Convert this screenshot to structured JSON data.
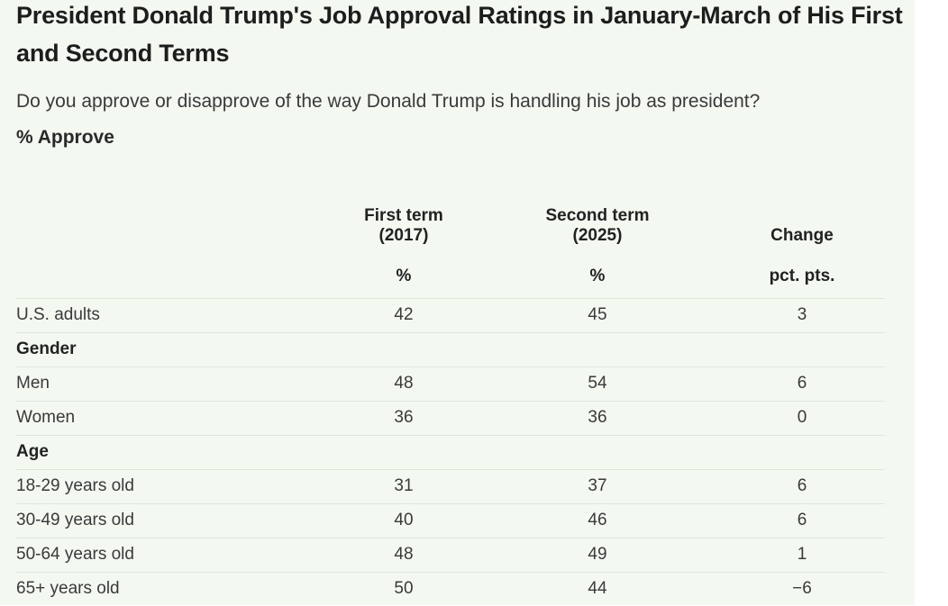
{
  "chart_data": {
    "type": "table",
    "title": "President Donald Trump's Job Approval Ratings in January-March of His First and Second Terms",
    "subtitle": "Do you approve or disapprove of the way Donald Trump is handling his job as president?",
    "measure": "% Approve",
    "columns": [
      {
        "header": "First term\n(2017)",
        "unit": "%"
      },
      {
        "header": "Second term\n(2025)",
        "unit": "%"
      },
      {
        "header": "Change",
        "unit": "pct. pts."
      }
    ],
    "rows": [
      {
        "label": "U.S. adults",
        "values": [
          "42",
          "45",
          "3"
        ]
      },
      {
        "label": "Gender",
        "group": true
      },
      {
        "label": "Men",
        "values": [
          "48",
          "54",
          "6"
        ]
      },
      {
        "label": "Women",
        "values": [
          "36",
          "36",
          "0"
        ]
      },
      {
        "label": "Age",
        "group": true
      },
      {
        "label": "18-29 years old",
        "values": [
          "31",
          "37",
          "6"
        ]
      },
      {
        "label": "30-49 years old",
        "values": [
          "40",
          "46",
          "6"
        ]
      },
      {
        "label": "50-64 years old",
        "values": [
          "48",
          "49",
          "1"
        ]
      },
      {
        "label": "65+ years old",
        "values": [
          "50",
          "44",
          "−6"
        ]
      }
    ]
  }
}
